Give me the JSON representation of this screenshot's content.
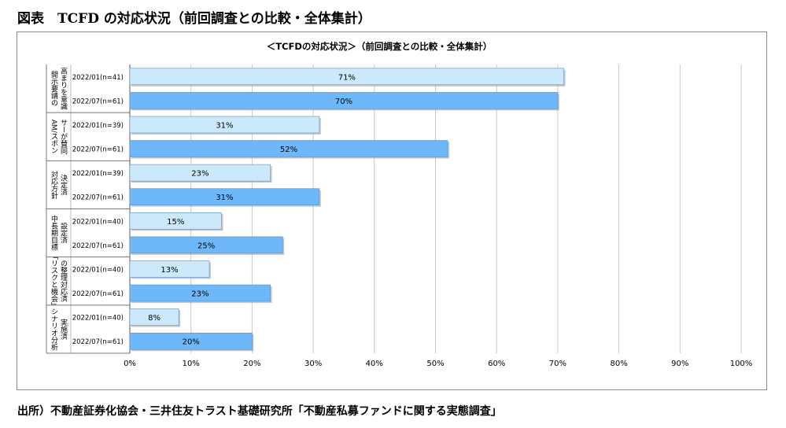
{
  "figure_title": "図表　TCFD の対応状況（前回調査との比較・全体集計）",
  "source": "出所）不動産証券化協会・三井住友トラスト基礎研究所「不動産私募ファンドに関する実態調査」",
  "colors": {
    "series_2022_01": "#cce9fb",
    "series_2022_07": "#6eb7f8",
    "bar_border": "#5b8fc7",
    "grid": "#c8c8c8"
  },
  "chart_data": {
    "type": "bar",
    "orientation": "horizontal",
    "title": "＜TCFDの対応状況＞（前回調査との比較・全体集計）",
    "xlim": [
      0,
      100
    ],
    "x_ticks": [
      "0%",
      "10%",
      "20%",
      "30%",
      "40%",
      "50%",
      "60%",
      "70%",
      "80%",
      "90%",
      "100%"
    ],
    "grid": true,
    "groups": [
      {
        "label": [
          "開示要請の",
          "高まりを意識"
        ],
        "bars": [
          {
            "name": "2022/01(n=41)",
            "value": 71,
            "label": "71%"
          },
          {
            "name": "2022/07(n=61)",
            "value": 70,
            "label": "70%"
          }
        ]
      },
      {
        "label": [
          "AM/スポン",
          "サーが賛同"
        ],
        "bars": [
          {
            "name": "2022/01(n=39)",
            "value": 31,
            "label": "31%"
          },
          {
            "name": "2022/07(n=61)",
            "value": 52,
            "label": "52%"
          }
        ]
      },
      {
        "label": [
          "対応方針",
          "決定済"
        ],
        "bars": [
          {
            "name": "2022/01(n=39)",
            "value": 23,
            "label": "23%"
          },
          {
            "name": "2022/07(n=61)",
            "value": 31,
            "label": "31%"
          }
        ]
      },
      {
        "label": [
          "中長期目標",
          "設定済"
        ],
        "bars": [
          {
            "name": "2022/01(n=40)",
            "value": 15,
            "label": "15%"
          },
          {
            "name": "2022/07(n=61)",
            "value": 25,
            "label": "25%"
          }
        ]
      },
      {
        "label": [
          "「リスクと機会」",
          "の整理対応済"
        ],
        "bars": [
          {
            "name": "2022/01(n=40)",
            "value": 13,
            "label": "13%"
          },
          {
            "name": "2022/07(n=61)",
            "value": 23,
            "label": "23%"
          }
        ]
      },
      {
        "label": [
          "シナリオ分析",
          "実施済"
        ],
        "bars": [
          {
            "name": "2022/01(n=40)",
            "value": 8,
            "label": "8%"
          },
          {
            "name": "2022/07(n=61)",
            "value": 20,
            "label": "20%"
          }
        ]
      }
    ]
  }
}
